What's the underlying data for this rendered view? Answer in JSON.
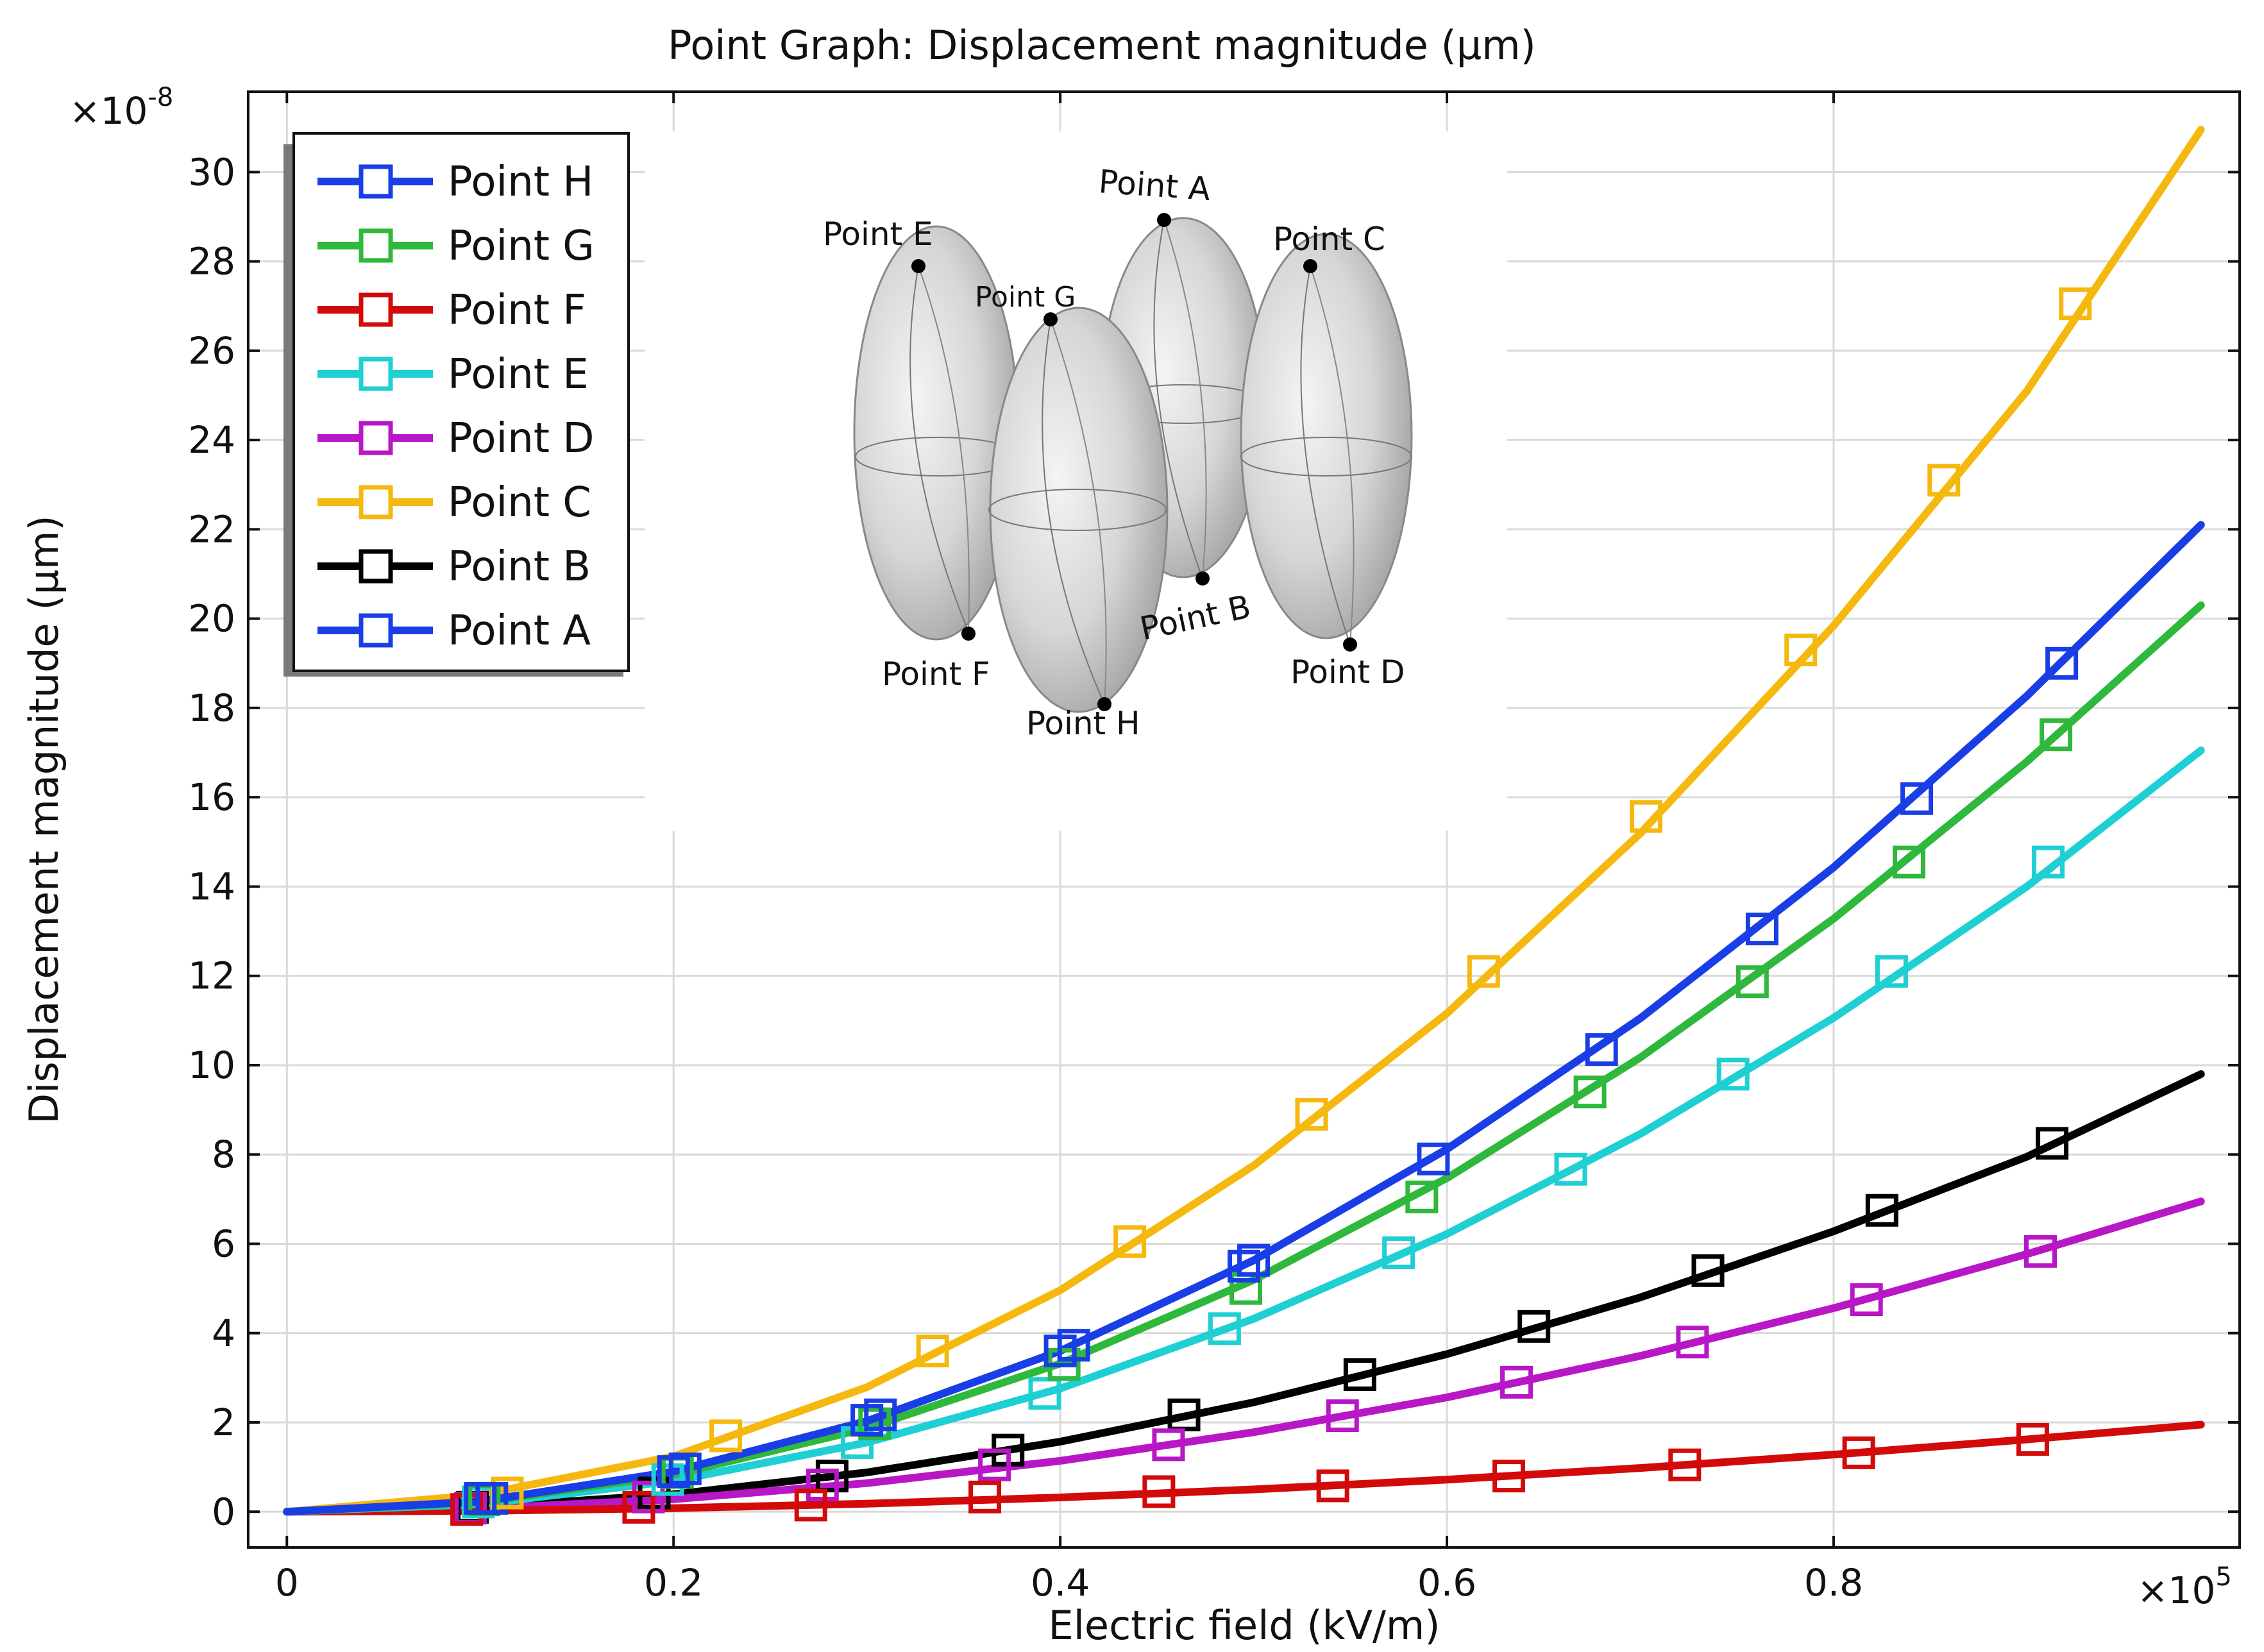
{
  "chart_data": {
    "type": "line",
    "title": "Point Graph: Displacement magnitude (µm)",
    "xlabel": "Electric field (kV/m)",
    "ylabel": "Displacement magnitude (µm)",
    "x_multiplier_label": "×10",
    "x_multiplier_exp": "5",
    "y_multiplier_label": "×10",
    "y_multiplier_exp": "-8",
    "xlim": [
      -0.02,
      1.01
    ],
    "ylim": [
      -0.8,
      31.8
    ],
    "xticks": [
      0,
      0.2,
      0.4,
      0.6,
      0.8
    ],
    "xtick_labels": [
      "0",
      "0.2",
      "0.4",
      "0.6",
      "0.8"
    ],
    "yticks": [
      0,
      2,
      4,
      6,
      8,
      10,
      12,
      14,
      16,
      18,
      20,
      22,
      24,
      26,
      28,
      30
    ],
    "ytick_labels": [
      "0",
      "2",
      "4",
      "6",
      "8",
      "10",
      "12",
      "14",
      "16",
      "18",
      "20",
      "22",
      "24",
      "26",
      "28",
      "30"
    ],
    "grid": true,
    "legend_position": "top-left",
    "x": [
      0,
      0.1,
      0.2,
      0.3,
      0.4,
      0.5,
      0.6,
      0.7,
      0.8,
      0.9,
      0.99
    ],
    "series": [
      {
        "name": "Point H",
        "color": "#1a3ee6",
        "values": [
          0,
          0.23,
          0.9,
          2.03,
          3.6,
          5.63,
          8.12,
          11.05,
          14.43,
          18.27,
          22.1
        ],
        "markers": [
          [
            0.106,
            0.3
          ],
          [
            0.206,
            0.96
          ],
          [
            0.307,
            2.17
          ],
          [
            0.407,
            3.73
          ],
          [
            0.5,
            5.63
          ],
          [
            0.593,
            7.9
          ],
          [
            0.68,
            10.35
          ],
          [
            0.763,
            13.05
          ],
          [
            0.843,
            15.97
          ],
          [
            0.918,
            19.0
          ]
        ]
      },
      {
        "name": "Point G",
        "color": "#2eb83c",
        "values": [
          0,
          0.21,
          0.83,
          1.87,
          3.32,
          5.19,
          7.47,
          10.17,
          13.28,
          16.8,
          20.3
        ],
        "markers": [
          [
            0.102,
            0.27
          ],
          [
            0.202,
            0.88
          ],
          [
            0.304,
            1.97
          ],
          [
            0.402,
            3.3
          ],
          [
            0.496,
            5.0
          ],
          [
            0.587,
            7.05
          ],
          [
            0.674,
            9.4
          ],
          [
            0.758,
            11.87
          ],
          [
            0.839,
            14.55
          ],
          [
            0.915,
            17.4
          ]
        ]
      },
      {
        "name": "Point F",
        "color": "#d20a0a",
        "values": [
          0,
          0.02,
          0.08,
          0.18,
          0.32,
          0.5,
          0.72,
          0.98,
          1.28,
          1.62,
          1.95
        ],
        "markers": [
          [
            0.093,
            0.05
          ],
          [
            0.182,
            0.1
          ],
          [
            0.271,
            0.15
          ],
          [
            0.361,
            0.33
          ],
          [
            0.451,
            0.45
          ],
          [
            0.541,
            0.58
          ],
          [
            0.632,
            0.8
          ],
          [
            0.723,
            1.05
          ],
          [
            0.813,
            1.32
          ],
          [
            0.903,
            1.62
          ]
        ]
      },
      {
        "name": "Point E",
        "color": "#1ecfd3",
        "values": [
          0,
          0.17,
          0.69,
          1.55,
          2.76,
          4.32,
          6.22,
          8.46,
          11.06,
          14.0,
          17.05
        ],
        "markers": [
          [
            0.099,
            0.22
          ],
          [
            0.197,
            0.72
          ],
          [
            0.295,
            1.55
          ],
          [
            0.392,
            2.65
          ],
          [
            0.485,
            4.1
          ],
          [
            0.575,
            5.8
          ],
          [
            0.664,
            7.67
          ],
          [
            0.748,
            9.8
          ],
          [
            0.83,
            12.1
          ],
          [
            0.911,
            14.55
          ]
        ]
      },
      {
        "name": "Point D",
        "color": "#b817c6",
        "values": [
          0,
          0.07,
          0.28,
          0.64,
          1.14,
          1.78,
          2.56,
          3.49,
          4.56,
          5.77,
          6.95
        ],
        "markers": [
          [
            0.095,
            0.08
          ],
          [
            0.187,
            0.33
          ],
          [
            0.277,
            0.6
          ],
          [
            0.366,
            1.05
          ],
          [
            0.456,
            1.5
          ],
          [
            0.546,
            2.15
          ],
          [
            0.636,
            2.9
          ],
          [
            0.727,
            3.8
          ],
          [
            0.817,
            4.75
          ],
          [
            0.907,
            5.83
          ]
        ]
      },
      {
        "name": "Point C",
        "color": "#f5b80f",
        "values": [
          0,
          0.38,
          1.24,
          2.79,
          4.96,
          7.75,
          11.16,
          15.19,
          19.84,
          25.1,
          30.95
        ],
        "markers": [
          [
            0.114,
            0.42
          ],
          [
            0.227,
            1.7
          ],
          [
            0.334,
            3.6
          ],
          [
            0.436,
            6.05
          ],
          [
            0.53,
            8.9
          ],
          [
            0.619,
            12.1
          ],
          [
            0.703,
            15.57
          ],
          [
            0.783,
            19.3
          ],
          [
            0.857,
            23.1
          ],
          [
            0.925,
            27.05
          ]
        ]
      },
      {
        "name": "Point B",
        "color": "#000000",
        "values": [
          0,
          0.1,
          0.39,
          0.88,
          1.57,
          2.45,
          3.53,
          4.8,
          6.28,
          7.95,
          9.8
        ],
        "markers": [
          [
            0.096,
            0.1
          ],
          [
            0.19,
            0.42
          ],
          [
            0.282,
            0.8
          ],
          [
            0.373,
            1.38
          ],
          [
            0.464,
            2.17
          ],
          [
            0.555,
            3.07
          ],
          [
            0.645,
            4.15
          ],
          [
            0.735,
            5.4
          ],
          [
            0.825,
            6.75
          ],
          [
            0.913,
            8.25
          ]
        ]
      },
      {
        "name": "Point A",
        "color": "#1a3ee6",
        "values": [
          0,
          0.23,
          0.9,
          2.03,
          3.6,
          5.63,
          8.12,
          11.05,
          14.43,
          18.27,
          22.1
        ],
        "markers": [
          [
            0.1,
            0.3
          ],
          [
            0.2,
            0.9
          ],
          [
            0.3,
            2.05
          ],
          [
            0.4,
            3.6
          ],
          [
            0.495,
            5.5
          ]
        ]
      }
    ]
  },
  "inset": {
    "labels": [
      "Point A",
      "Point B",
      "Point C",
      "Point D",
      "Point E",
      "Point F",
      "Point G",
      "Point H"
    ]
  }
}
